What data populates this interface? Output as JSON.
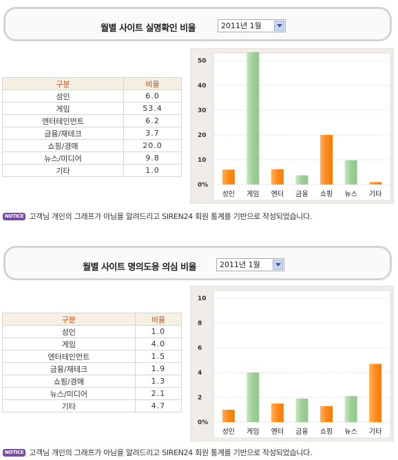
{
  "colors": {
    "orange": "#ff8a1a",
    "green": "#9ccf95"
  },
  "sections": [
    {
      "title": "월별 사이트 실명확인 비율",
      "period_select": "2011년 1월",
      "table": {
        "headers": [
          "구분",
          "비율"
        ],
        "rows": [
          [
            "성인",
            "6.0"
          ],
          [
            "게임",
            "53.4"
          ],
          [
            "엔터테인먼트",
            "6.2"
          ],
          [
            "금융/재테크",
            "3.7"
          ],
          [
            "쇼핑/경매",
            "20.0"
          ],
          [
            "뉴스/미디어",
            "9.8"
          ],
          [
            "기타",
            "1.0"
          ]
        ]
      },
      "notice_badge": "NOTICE",
      "notice": "고객님 개인의 그래프가 아님을 알려드리고 SIREN24 회원 통계를 기반으로 작성되었습니다."
    },
    {
      "title": "월별 사이트 명의도용 의심 비율",
      "period_select": "2011년 1월",
      "table": {
        "headers": [
          "구분",
          "비율"
        ],
        "rows": [
          [
            "성인",
            "1.0"
          ],
          [
            "게임",
            "4.0"
          ],
          [
            "엔터테인먼트",
            "1.5"
          ],
          [
            "금융/재테크",
            "1.9"
          ],
          [
            "쇼핑/경매",
            "1.3"
          ],
          [
            "뉴스/미디어",
            "2.1"
          ],
          [
            "기타",
            "4.7"
          ]
        ]
      },
      "notice_badge": "NOTICE",
      "notice": "고객님 개인의 그래프가 아님을 알려드리고 SIREN24 회원 통계를 기반으로 작성되었습니다."
    }
  ],
  "chart_data": [
    {
      "type": "bar",
      "categories": [
        "성인",
        "게임",
        "엔터",
        "금융",
        "쇼핑",
        "뉴스",
        "기타"
      ],
      "values": [
        6.0,
        53.4,
        6.2,
        3.7,
        20.0,
        9.8,
        1.0
      ],
      "bar_colors": [
        "orange",
        "green",
        "orange",
        "green",
        "orange",
        "green",
        "orange"
      ],
      "ylim": [
        0,
        53.4
      ],
      "yticks": [
        0,
        10,
        20,
        30,
        40,
        50
      ],
      "ytick_labels": [
        "0%",
        "10",
        "20",
        "30",
        "40",
        "50"
      ],
      "grid": true
    },
    {
      "type": "bar",
      "categories": [
        "성인",
        "게임",
        "엔터",
        "금융",
        "쇼핑",
        "뉴스",
        "기타"
      ],
      "values": [
        1.0,
        4.0,
        1.5,
        1.9,
        1.3,
        2.1,
        4.7
      ],
      "bar_colors": [
        "orange",
        "green",
        "orange",
        "green",
        "orange",
        "green",
        "orange"
      ],
      "ylim": [
        0,
        10
      ],
      "yticks": [
        0,
        2,
        4,
        6,
        8,
        10
      ],
      "ytick_labels": [
        "0%",
        "2",
        "4",
        "6",
        "8",
        "10"
      ],
      "grid": true
    }
  ]
}
